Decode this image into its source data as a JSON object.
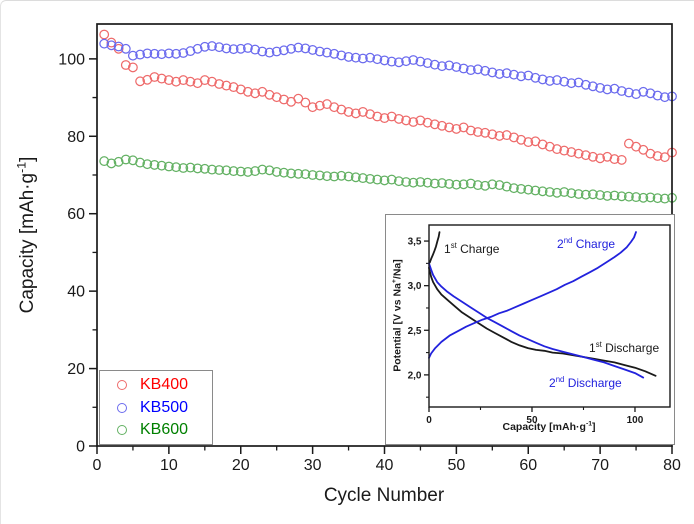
{
  "figure": {
    "background": "#ffffff",
    "frame_color": "#1a1a1a",
    "box_border_color": "#8a8a8a"
  },
  "chart_data": [
    {
      "id": "cycling-performance",
      "type": "scatter",
      "title": "",
      "xlabel": "Cycle Number",
      "ylabel_pre": "Capacity [mAh·g",
      "ylabel_sup": "-1",
      "ylabel_post": "]",
      "xlim": [
        0,
        80
      ],
      "ylim": [
        0,
        109
      ],
      "grid": false,
      "legend_position": "lower-left",
      "xticks": [
        0,
        10,
        20,
        30,
        40,
        50,
        60,
        70,
        80
      ],
      "yticks": [
        0,
        20,
        40,
        60,
        80,
        100
      ],
      "x_minor_ticks": [
        5,
        15,
        25,
        35,
        45,
        55,
        65,
        75
      ],
      "y_minor_ticks": [
        10,
        30,
        50,
        70,
        90
      ],
      "x_start_cycle": 1,
      "series": [
        {
          "name": "KB400",
          "legend_color": "#ff0000",
          "marker_color": "#ee6b6b",
          "marker": "open-circle",
          "values": [
            106.3,
            104.2,
            102.6,
            98.4,
            97.8,
            94.2,
            94.6,
            95.3,
            94.9,
            94.5,
            94.1,
            94.5,
            94.1,
            93.7,
            94.5,
            94.1,
            93.5,
            93.1,
            92.7,
            92.1,
            91.5,
            91.1,
            91.5,
            90.7,
            90.1,
            89.5,
            88.9,
            89.7,
            88.7,
            87.5,
            87.9,
            88.3,
            87.5,
            86.9,
            86.3,
            85.9,
            86.3,
            85.7,
            85.1,
            84.7,
            85.1,
            84.5,
            84.1,
            83.7,
            84.1,
            83.5,
            83.1,
            82.7,
            82.3,
            81.9,
            82.3,
            81.5,
            81.1,
            80.9,
            80.5,
            80.1,
            80.3,
            79.7,
            79.1,
            78.5,
            78.7,
            77.9,
            77.3,
            76.7,
            76.3,
            75.9,
            75.5,
            75.1,
            74.7,
            74.3,
            74.7,
            74.1,
            73.9,
            78.1,
            77.3,
            76.5,
            75.5,
            74.9,
            74.6,
            75.8
          ]
        },
        {
          "name": "KB500",
          "legend_color": "#0000ff",
          "marker_color": "#6b6bee",
          "marker": "open-circle",
          "values": [
            103.9,
            103.5,
            103.2,
            102.6,
            100.8,
            101.1,
            101.4,
            101.3,
            101.2,
            101.4,
            101.3,
            101.5,
            102.0,
            102.6,
            103.1,
            103.3,
            103.0,
            102.7,
            102.5,
            102.6,
            102.8,
            102.4,
            101.9,
            101.6,
            101.9,
            102.2,
            102.6,
            102.9,
            102.7,
            102.3,
            101.9,
            101.6,
            101.3,
            100.9,
            100.5,
            100.3,
            100.1,
            100.3,
            99.9,
            99.6,
            99.3,
            99.1,
            99.4,
            99.7,
            99.3,
            98.9,
            98.5,
            98.1,
            98.3,
            97.9,
            97.5,
            97.1,
            97.3,
            96.9,
            96.5,
            96.1,
            96.3,
            95.9,
            95.5,
            95.7,
            95.1,
            94.7,
            94.3,
            94.5,
            94.1,
            93.7,
            93.9,
            93.3,
            92.9,
            92.5,
            92.1,
            92.3,
            91.7,
            91.3,
            90.9,
            91.5,
            91.1,
            90.5,
            90.1,
            90.3
          ]
        },
        {
          "name": "KB600",
          "legend_color": "#008000",
          "marker_color": "#63b163",
          "marker": "open-circle",
          "values": [
            73.6,
            73.0,
            73.4,
            74.0,
            73.8,
            73.2,
            72.8,
            72.6,
            72.4,
            72.2,
            72.0,
            71.8,
            71.9,
            71.7,
            71.6,
            71.4,
            71.3,
            71.2,
            71.0,
            70.9,
            70.8,
            71.0,
            71.4,
            71.2,
            70.8,
            70.6,
            70.4,
            70.3,
            70.2,
            70.0,
            69.9,
            69.7,
            69.6,
            69.8,
            69.6,
            69.4,
            69.2,
            69.0,
            68.8,
            68.6,
            68.8,
            68.4,
            68.2,
            68.0,
            68.2,
            68.0,
            67.8,
            67.9,
            67.7,
            67.5,
            67.6,
            67.8,
            67.4,
            67.2,
            67.6,
            67.4,
            67.0,
            66.6,
            66.4,
            66.2,
            66.0,
            65.8,
            65.6,
            65.4,
            65.6,
            65.3,
            65.1,
            64.9,
            65.0,
            64.8,
            64.6,
            64.7,
            64.5,
            64.4,
            64.3,
            64.1,
            64.2,
            64.0,
            63.9,
            64.1
          ]
        }
      ]
    },
    {
      "id": "charge-discharge-profiles",
      "type": "line",
      "xlabel_pre": "Capacity [mAh·g",
      "xlabel_sup": "-1",
      "xlabel_post": "]",
      "ylabel_pre": "Potential [V vs Na",
      "ylabel_sup": "+",
      "ylabel_post": "/Na]",
      "xlim": [
        0,
        117
      ],
      "ylim": [
        1.64,
        3.68
      ],
      "grid": false,
      "xticks": [
        {
          "v": 0,
          "label": "0"
        },
        {
          "v": 50,
          "label": "50"
        },
        {
          "v": 100,
          "label": "100"
        }
      ],
      "yticks": [
        {
          "v": 2.0,
          "label": "2,0"
        },
        {
          "v": 2.5,
          "label": "2,5"
        },
        {
          "v": 3.0,
          "label": "3,0"
        },
        {
          "v": 3.5,
          "label": "3,5"
        }
      ],
      "x_minor_ticks": [
        25,
        75
      ],
      "y_minor_ticks": [
        1.75,
        2.25,
        2.75,
        3.25
      ],
      "curves": [
        {
          "name": "first-charge",
          "color": "#1a1a1a",
          "points": [
            [
              0.4,
              3.26
            ],
            [
              1.0,
              3.3
            ],
            [
              1.8,
              3.34
            ],
            [
              2.6,
              3.39
            ],
            [
              3.4,
              3.44
            ],
            [
              4.1,
              3.5
            ],
            [
              4.7,
              3.55
            ],
            [
              5.1,
              3.6
            ]
          ]
        },
        {
          "name": "first-discharge",
          "color": "#1a1a1a",
          "points": [
            [
              0,
              3.2
            ],
            [
              1,
              3.1
            ],
            [
              2,
              3.04
            ],
            [
              4,
              2.96
            ],
            [
              6,
              2.9
            ],
            [
              9,
              2.84
            ],
            [
              12,
              2.78
            ],
            [
              16,
              2.7
            ],
            [
              20,
              2.64
            ],
            [
              24,
              2.58
            ],
            [
              28,
              2.52
            ],
            [
              32,
              2.47
            ],
            [
              36,
              2.42
            ],
            [
              40,
              2.37
            ],
            [
              44,
              2.33
            ],
            [
              48,
              2.3
            ],
            [
              52,
              2.28
            ],
            [
              56,
              2.27
            ],
            [
              60,
              2.25
            ],
            [
              65,
              2.24
            ],
            [
              70,
              2.22
            ],
            [
              75,
              2.2
            ],
            [
              80,
              2.18
            ],
            [
              85,
              2.16
            ],
            [
              90,
              2.14
            ],
            [
              95,
              2.11
            ],
            [
              100,
              2.08
            ],
            [
              105,
              2.04
            ],
            [
              110,
              1.99
            ]
          ]
        },
        {
          "name": "second-charge",
          "color": "#2222dd",
          "points": [
            [
              0,
              2.19
            ],
            [
              1,
              2.24
            ],
            [
              3,
              2.3
            ],
            [
              6,
              2.37
            ],
            [
              10,
              2.44
            ],
            [
              14,
              2.49
            ],
            [
              18,
              2.54
            ],
            [
              22,
              2.58
            ],
            [
              26,
              2.62
            ],
            [
              30,
              2.65
            ],
            [
              34,
              2.69
            ],
            [
              38,
              2.72
            ],
            [
              42,
              2.76
            ],
            [
              46,
              2.8
            ],
            [
              50,
              2.84
            ],
            [
              54,
              2.88
            ],
            [
              58,
              2.92
            ],
            [
              62,
              2.96
            ],
            [
              66,
              3.01
            ],
            [
              70,
              3.05
            ],
            [
              74,
              3.1
            ],
            [
              78,
              3.15
            ],
            [
              82,
              3.2
            ],
            [
              86,
              3.26
            ],
            [
              90,
              3.32
            ],
            [
              93,
              3.37
            ],
            [
              96,
              3.43
            ],
            [
              98,
              3.49
            ],
            [
              99.5,
              3.54
            ],
            [
              100.5,
              3.6
            ]
          ]
        },
        {
          "name": "second-discharge",
          "color": "#2222dd",
          "points": [
            [
              0,
              3.25
            ],
            [
              1,
              3.18
            ],
            [
              2,
              3.12
            ],
            [
              4,
              3.04
            ],
            [
              6,
              2.99
            ],
            [
              9,
              2.93
            ],
            [
              12,
              2.88
            ],
            [
              16,
              2.82
            ],
            [
              20,
              2.76
            ],
            [
              24,
              2.7
            ],
            [
              28,
              2.64
            ],
            [
              32,
              2.59
            ],
            [
              36,
              2.54
            ],
            [
              40,
              2.49
            ],
            [
              44,
              2.44
            ],
            [
              48,
              2.4
            ],
            [
              52,
              2.36
            ],
            [
              56,
              2.32
            ],
            [
              60,
              2.29
            ],
            [
              65,
              2.26
            ],
            [
              70,
              2.23
            ],
            [
              75,
              2.2
            ],
            [
              80,
              2.17
            ],
            [
              85,
              2.14
            ],
            [
              90,
              2.1
            ],
            [
              95,
              2.06
            ],
            [
              100,
              2.02
            ],
            [
              104,
              1.97
            ]
          ]
        }
      ],
      "annotations": [
        {
          "pre": "1",
          "sup": "st",
          "post": " Charge",
          "color": "#1a1a1a"
        },
        {
          "pre": "2",
          "sup": "nd",
          "post": " Charge",
          "color": "#2222dd"
        },
        {
          "pre": "1",
          "sup": "st",
          "post": " Discharge",
          "color": "#1a1a1a"
        },
        {
          "pre": "2",
          "sup": "nd",
          "post": " Discharge",
          "color": "#2222dd"
        }
      ]
    }
  ]
}
